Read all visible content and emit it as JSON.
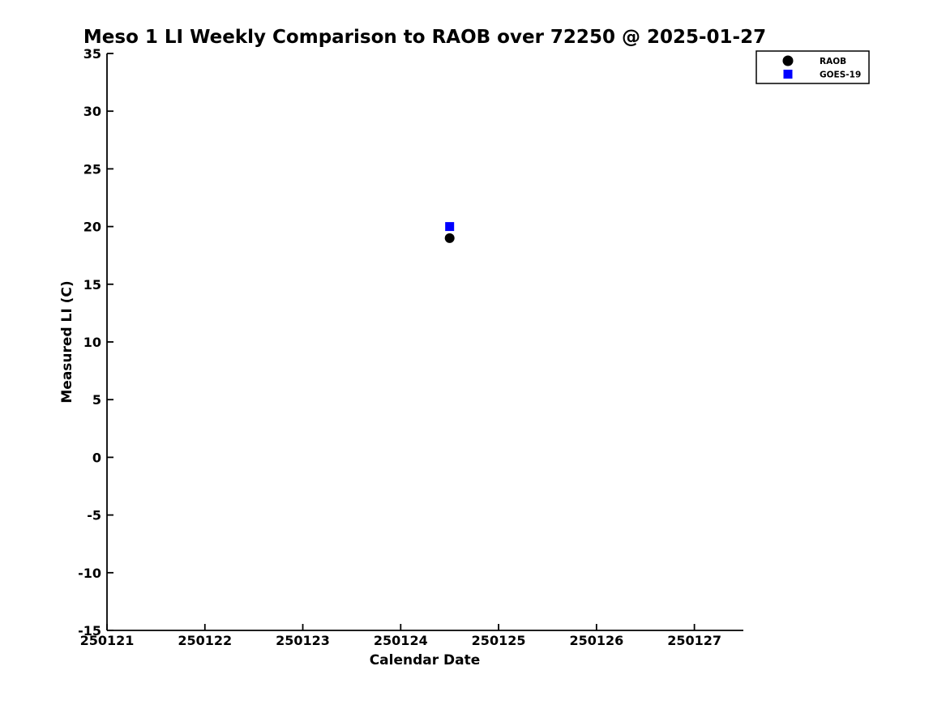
{
  "figure": {
    "background": "#ffffff",
    "text_color": "#000000",
    "axis_color": "#000000"
  },
  "chart_data": {
    "type": "scatter",
    "title": "Meso 1 LI Weekly Comparison to RAOB over 72250 @ 2025-01-27",
    "xlabel": "Calendar Date",
    "ylabel": "Measured LI (C)",
    "xlim": [
      250121,
      250127.5
    ],
    "ylim": [
      -15,
      35
    ],
    "x_ticks": [
      250121,
      250122,
      250123,
      250124,
      250125,
      250126,
      250127
    ],
    "y_ticks": [
      35,
      30,
      25,
      20,
      15,
      10,
      5,
      0,
      -5,
      -10,
      -15
    ],
    "grid": false,
    "legend": {
      "position": "top-right",
      "entries": [
        {
          "label": "RAOB",
          "marker": "circle",
          "color": "#000000"
        },
        {
          "label": "GOES-19",
          "marker": "square",
          "color": "#0000ff"
        }
      ]
    },
    "series": [
      {
        "name": "RAOB",
        "marker": "circle",
        "color": "#000000",
        "points": [
          {
            "x": 250124.5,
            "y": 19
          }
        ]
      },
      {
        "name": "GOES-19",
        "marker": "square",
        "color": "#0000ff",
        "points": [
          {
            "x": 250124.5,
            "y": 20
          }
        ]
      }
    ]
  }
}
